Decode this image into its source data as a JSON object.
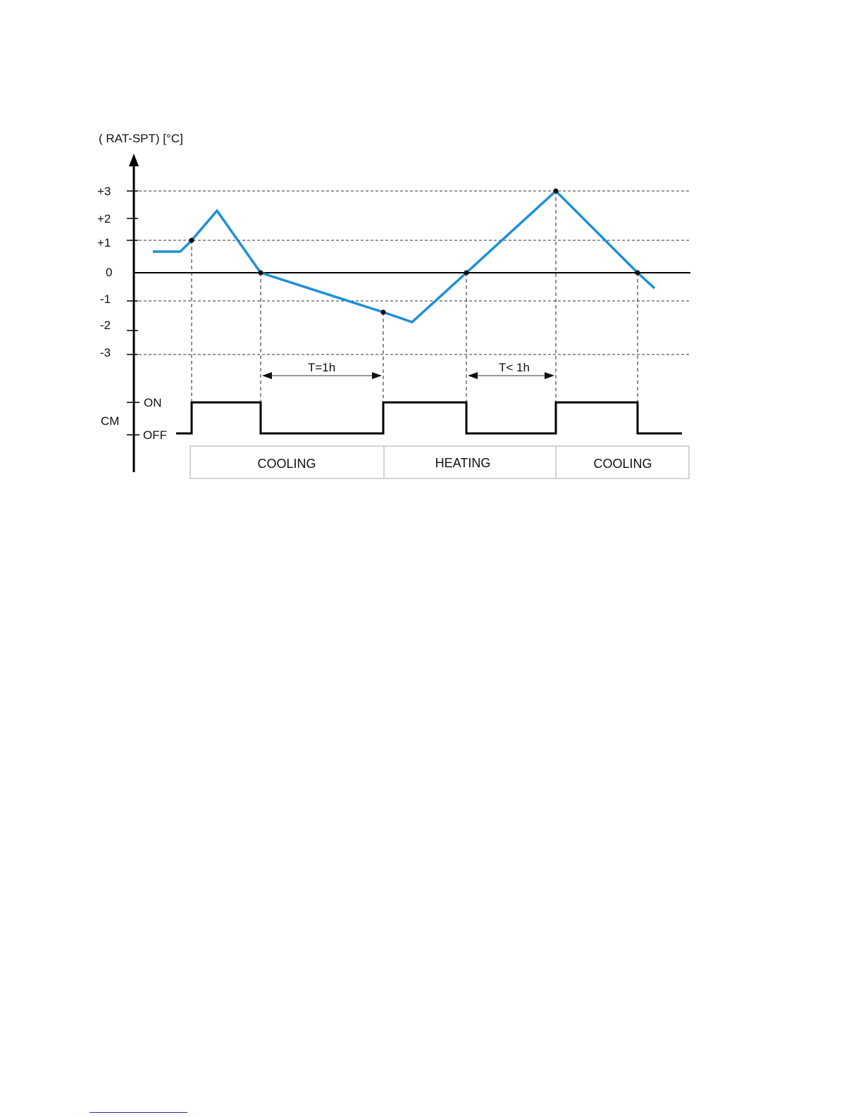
{
  "title": "( RAT-SPT)  [°C]",
  "y_ticks": [
    {
      "label": "+3",
      "value": 3
    },
    {
      "label": "+2",
      "value": 2
    },
    {
      "label": "+1",
      "value": 1
    },
    {
      "label": "0",
      "value": 0
    },
    {
      "label": "-1",
      "value": -1
    },
    {
      "label": "-2",
      "value": -2
    },
    {
      "label": "-3",
      "value": -3
    }
  ],
  "cm": {
    "label": "CM",
    "on_label": "ON",
    "off_label": "OFF"
  },
  "intervals": {
    "cooling_wait": "T=1h",
    "heating_wait": "T< 1h"
  },
  "modes": [
    {
      "label": "COOLING"
    },
    {
      "label": "HEATING"
    },
    {
      "label": "COOLING"
    }
  ],
  "colors": {
    "curve": "#1e90d6",
    "axis": "#000000",
    "dashed": "#333333",
    "mode_border": "#aaaaaa",
    "footer_rule": "#2a2aaa"
  }
}
